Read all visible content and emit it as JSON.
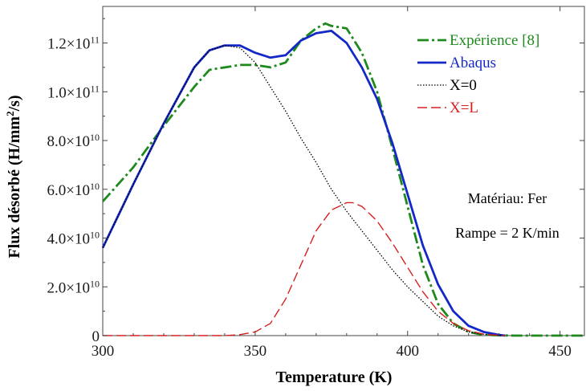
{
  "chart_data": {
    "type": "line",
    "xlabel": "Temperature (K)",
    "ylabel": {
      "main": "Flux désorbé (H/mm",
      "sup": "2",
      "tail": "/s)"
    },
    "xlim": [
      300,
      458
    ],
    "ylim": [
      0,
      135000000000.0
    ],
    "xticks": [
      {
        "value": 300,
        "label": "300"
      },
      {
        "value": 350,
        "label": "350"
      },
      {
        "value": 400,
        "label": "400"
      },
      {
        "value": 450,
        "label": "450"
      }
    ],
    "yticks": [
      {
        "value": 0,
        "base": "0",
        "exp": ""
      },
      {
        "value": 20000000000.0,
        "base": "2.0×10",
        "exp": "10"
      },
      {
        "value": 40000000000.0,
        "base": "4.0×10",
        "exp": "10"
      },
      {
        "value": 60000000000.0,
        "base": "6.0×10",
        "exp": "10"
      },
      {
        "value": 80000000000.0,
        "base": "8.0×10",
        "exp": "10"
      },
      {
        "value": 100000000000.0,
        "base": "1.0×10",
        "exp": "11"
      },
      {
        "value": 120000000000.0,
        "base": "1.2×10",
        "exp": "11"
      }
    ],
    "grid": false,
    "legend_position": "top-right",
    "annotations": [
      "Matériau: Fer",
      "Rampe = 2 K/min"
    ],
    "series": [
      {
        "name": "Expérience [8]",
        "color": "#1e8a1e",
        "dash": "dash-dot",
        "x": [
          300,
          310,
          320,
          330,
          335,
          340,
          345,
          350,
          355,
          360,
          365,
          370,
          373,
          375,
          380,
          385,
          390,
          395,
          400,
          405,
          410,
          415,
          420,
          425,
          430,
          435,
          440,
          445,
          450,
          455,
          458
        ],
        "y": [
          55000000000.0,
          69000000000.0,
          86000000000.0,
          102000000000.0,
          109000000000.0,
          110000000000.0,
          111000000000.0,
          111000000000.0,
          110000000000.0,
          112000000000.0,
          121000000000.0,
          126000000000.0,
          128000000000.0,
          127000000000.0,
          126000000000.0,
          116000000000.0,
          100000000000.0,
          77000000000.0,
          53000000000.0,
          29000000000.0,
          13000000000.0,
          5000000000.0,
          1500000000.0,
          300000000.0,
          100000000.0,
          0,
          0,
          0,
          0,
          0,
          0
        ]
      },
      {
        "name": "Abaqus",
        "color": "#1428c8",
        "dash": "solid",
        "x": [
          300,
          310,
          320,
          330,
          335,
          340,
          345,
          350,
          355,
          360,
          365,
          370,
          375,
          380,
          385,
          390,
          395,
          400,
          405,
          410,
          415,
          420,
          425,
          430,
          432
        ],
        "y": [
          36000000000.0,
          62000000000.0,
          87000000000.0,
          110000000000.0,
          117000000000.0,
          119000000000.0,
          119000000000.0,
          116000000000.0,
          114000000000.0,
          115000000000.0,
          121000000000.0,
          124000000000.0,
          125000000000.0,
          120000000000.0,
          110000000000.0,
          97000000000.0,
          79000000000.0,
          58000000000.0,
          37000000000.0,
          21000000000.0,
          10000000000.0,
          4000000000.0,
          1500000000.0,
          300000000.0,
          0
        ]
      },
      {
        "name": "X=0",
        "color": "#000000",
        "dash": "dotted",
        "x": [
          300,
          310,
          320,
          330,
          335,
          340,
          345,
          350,
          355,
          360,
          365,
          370,
          375,
          380,
          385,
          390,
          395,
          400,
          405,
          410,
          415,
          420,
          425,
          430,
          432
        ],
        "y": [
          36000000000.0,
          62000000000.0,
          87000000000.0,
          110000000000.0,
          117000000000.0,
          119000000000.0,
          118000000000.0,
          112000000000.0,
          102000000000.0,
          92000000000.0,
          81000000000.0,
          71000000000.0,
          60000000000.0,
          51000000000.0,
          43000000000.0,
          35000000000.0,
          27000000000.0,
          20000000000.0,
          14000000000.0,
          8000000000.0,
          4000000000.0,
          1500000000.0,
          500000000.0,
          100000000.0,
          0
        ]
      },
      {
        "name": "X=L",
        "color": "#d62020",
        "dash": "dashed",
        "x": [
          300,
          340,
          345,
          350,
          355,
          360,
          365,
          370,
          375,
          380,
          382,
          385,
          390,
          395,
          400,
          405,
          410,
          415,
          420,
          425,
          430,
          432
        ],
        "y": [
          0,
          0,
          400000000.0,
          1500000000.0,
          5000000000.0,
          15000000000.0,
          29000000000.0,
          43000000000.0,
          51500000000.0,
          54500000000.0,
          54500000000.0,
          53000000000.0,
          47000000000.0,
          38000000000.0,
          28000000000.0,
          18000000000.0,
          10000000000.0,
          5000000000.0,
          2000000000.0,
          600000000.0,
          100000000.0,
          0
        ]
      }
    ]
  }
}
